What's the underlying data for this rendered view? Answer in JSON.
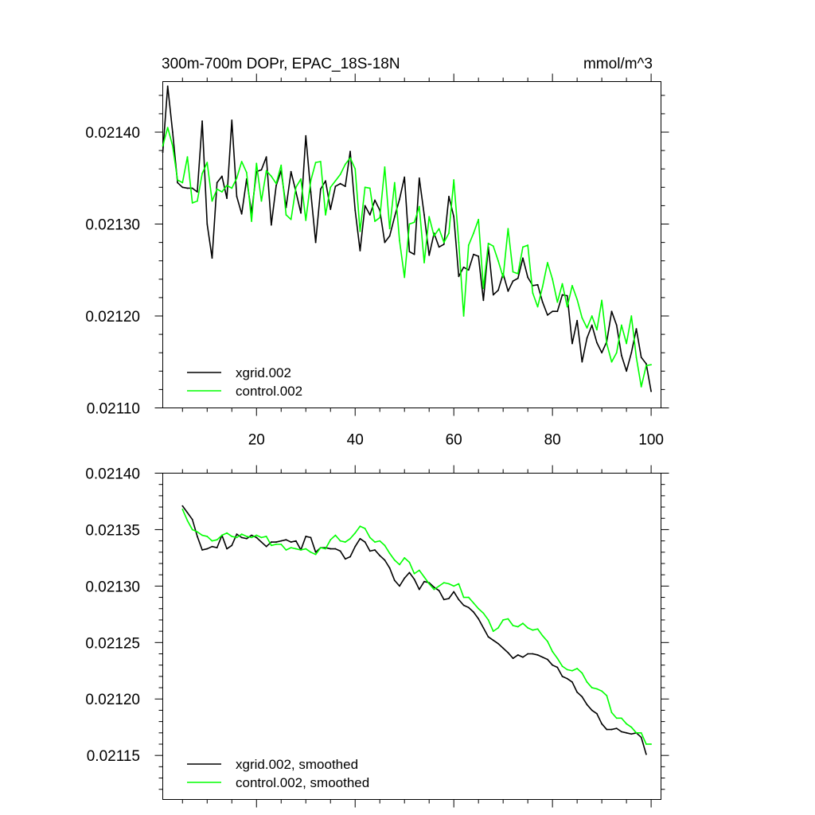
{
  "chart_data": [
    {
      "type": "line",
      "title": "300m-700m DOPr, EPAC_18S-18N",
      "units": "mmol/m^3",
      "xlim": [
        1,
        102
      ],
      "ylim": [
        0.0211,
        0.021455
      ],
      "x_ticks": [
        20,
        40,
        60,
        80,
        100
      ],
      "y_ticks": [
        "0.02110",
        "0.02120",
        "0.02130",
        "0.02140"
      ],
      "y_tick_values": [
        0.0211,
        0.0212,
        0.0213,
        0.0214
      ],
      "legend_position": "bottom-left",
      "series": [
        {
          "name": "xgrid.002",
          "color": "#000000",
          "x_start": 1,
          "values": [
            0.021378,
            0.02145,
            0.0214,
            0.021345,
            0.02134,
            0.021339,
            0.021339,
            0.021335,
            0.021412,
            0.0213,
            0.021263,
            0.021345,
            0.021352,
            0.021328,
            0.021413,
            0.02133,
            0.021311,
            0.021349,
            0.021312,
            0.021357,
            0.021359,
            0.021373,
            0.021299,
            0.021342,
            0.021358,
            0.021318,
            0.021357,
            0.021335,
            0.021312,
            0.021396,
            0.021335,
            0.02128,
            0.021338,
            0.021347,
            0.021316,
            0.021341,
            0.021344,
            0.021341,
            0.021379,
            0.021315,
            0.021271,
            0.02132,
            0.02131,
            0.021326,
            0.021315,
            0.02128,
            0.021287,
            0.021308,
            0.021327,
            0.021351,
            0.02127,
            0.021267,
            0.02135,
            0.02131,
            0.021266,
            0.02129,
            0.021275,
            0.021278,
            0.02133,
            0.021308,
            0.021243,
            0.021253,
            0.02125,
            0.021267,
            0.021265,
            0.021217,
            0.021275,
            0.021223,
            0.021228,
            0.021246,
            0.021227,
            0.021238,
            0.021241,
            0.021263,
            0.021242,
            0.021233,
            0.021234,
            0.021215,
            0.021201,
            0.021205,
            0.021205,
            0.021223,
            0.021222,
            0.02117,
            0.021195,
            0.02115,
            0.021176,
            0.02119,
            0.021171,
            0.02116,
            0.021172,
            0.021205,
            0.02119,
            0.021157,
            0.02114,
            0.02116,
            0.021186,
            0.021155,
            0.021148,
            0.021118
          ]
        },
        {
          "name": "control.002",
          "color": "#00ff00",
          "x_start": 1,
          "values": [
            0.021385,
            0.021405,
            0.021385,
            0.021348,
            0.021345,
            0.021373,
            0.021323,
            0.021325,
            0.021355,
            0.021367,
            0.021325,
            0.021338,
            0.021335,
            0.021342,
            0.021339,
            0.02135,
            0.021368,
            0.021356,
            0.021303,
            0.021366,
            0.021325,
            0.021358,
            0.021352,
            0.021344,
            0.021364,
            0.02131,
            0.021305,
            0.02134,
            0.021349,
            0.021304,
            0.021347,
            0.021367,
            0.021368,
            0.02131,
            0.02134,
            0.021347,
            0.021354,
            0.021365,
            0.021372,
            0.02136,
            0.021292,
            0.02134,
            0.021339,
            0.021303,
            0.021307,
            0.021362,
            0.021295,
            0.021345,
            0.021282,
            0.021242,
            0.0213,
            0.021302,
            0.021319,
            0.021258,
            0.021308,
            0.021287,
            0.021295,
            0.02128,
            0.02129,
            0.021348,
            0.02128,
            0.0212,
            0.021277,
            0.02129,
            0.021305,
            0.02123,
            0.021279,
            0.021276,
            0.02126,
            0.021242,
            0.021295,
            0.021248,
            0.021246,
            0.021275,
            0.021277,
            0.021225,
            0.02121,
            0.021232,
            0.021258,
            0.02124,
            0.021215,
            0.021235,
            0.02121,
            0.021233,
            0.021218,
            0.021198,
            0.021187,
            0.0212,
            0.021185,
            0.021217,
            0.02117,
            0.02115,
            0.02116,
            0.02119,
            0.02117,
            0.0212,
            0.021155,
            0.021123,
            0.021146,
            0.021147
          ]
        }
      ]
    },
    {
      "type": "line",
      "title": "",
      "xlim": [
        1,
        102
      ],
      "ylim": [
        0.021111,
        0.0214
      ],
      "x_ticks": [
        20,
        40,
        60,
        80,
        100
      ],
      "y_ticks": [
        "0.02115",
        "0.02120",
        "0.02125",
        "0.02130",
        "0.02135",
        "0.02140"
      ],
      "y_tick_values": [
        0.02115,
        0.0212,
        0.02125,
        0.0213,
        0.02135,
        0.0214
      ],
      "legend_position": "bottom-left",
      "series": [
        {
          "name": "xgrid.002, smoothed",
          "color": "#000000",
          "x_start": 5,
          "values": [
            0.021371,
            0.021365,
            0.021359,
            0.021344,
            0.021332,
            0.021333,
            0.021335,
            0.021334,
            0.021345,
            0.021333,
            0.021336,
            0.021346,
            0.021343,
            0.021342,
            0.021345,
            0.021343,
            0.021339,
            0.021335,
            0.021339,
            0.021339,
            0.02134,
            0.021341,
            0.021339,
            0.02134,
            0.021332,
            0.021344,
            0.021343,
            0.02133,
            0.021334,
            0.021334,
            0.021333,
            0.021333,
            0.021331,
            0.021324,
            0.021326,
            0.021335,
            0.021342,
            0.021339,
            0.021331,
            0.021332,
            0.021327,
            0.021323,
            0.021316,
            0.021305,
            0.0213,
            0.021307,
            0.021312,
            0.021306,
            0.021297,
            0.021304,
            0.021303,
            0.021299,
            0.021296,
            0.021288,
            0.021289,
            0.021295,
            0.021288,
            0.021283,
            0.021281,
            0.021277,
            0.021271,
            0.021263,
            0.021255,
            0.021252,
            0.021249,
            0.021245,
            0.021241,
            0.021236,
            0.021239,
            0.021237,
            0.02124,
            0.02124,
            0.021239,
            0.021237,
            0.021235,
            0.02123,
            0.021228,
            0.02122,
            0.021218,
            0.021215,
            0.021206,
            0.021202,
            0.021195,
            0.02119,
            0.021187,
            0.021178,
            0.021173,
            0.021173,
            0.021174,
            0.021171,
            0.02117,
            0.021169,
            0.02117,
            0.021166,
            0.021151
          ]
        },
        {
          "name": "control.002, smoothed",
          "color": "#00ff00",
          "x_start": 5,
          "values": [
            0.021368,
            0.021358,
            0.02135,
            0.021348,
            0.021345,
            0.021344,
            0.02134,
            0.021341,
            0.021345,
            0.021347,
            0.021344,
            0.021343,
            0.021346,
            0.021344,
            0.021343,
            0.021345,
            0.021343,
            0.021344,
            0.021336,
            0.021337,
            0.021337,
            0.021332,
            0.021334,
            0.021333,
            0.021332,
            0.021333,
            0.02133,
            0.021328,
            0.021334,
            0.021333,
            0.021341,
            0.021345,
            0.02134,
            0.021339,
            0.021342,
            0.021347,
            0.021353,
            0.021351,
            0.021343,
            0.021339,
            0.02134,
            0.021336,
            0.021329,
            0.021323,
            0.021319,
            0.021325,
            0.021321,
            0.021311,
            0.021314,
            0.021308,
            0.021302,
            0.021297,
            0.0213,
            0.021303,
            0.021302,
            0.0213,
            0.021302,
            0.02129,
            0.02129,
            0.021285,
            0.02128,
            0.021276,
            0.02127,
            0.02126,
            0.021263,
            0.02127,
            0.021271,
            0.021265,
            0.021264,
            0.021267,
            0.021263,
            0.021261,
            0.021262,
            0.021256,
            0.021251,
            0.021242,
            0.021236,
            0.021229,
            0.021226,
            0.021225,
            0.021227,
            0.021223,
            0.021215,
            0.02121,
            0.021209,
            0.021207,
            0.021203,
            0.021188,
            0.021183,
            0.021183,
            0.021178,
            0.021175,
            0.02117,
            0.02117,
            0.02116,
            0.02116
          ]
        }
      ]
    }
  ]
}
